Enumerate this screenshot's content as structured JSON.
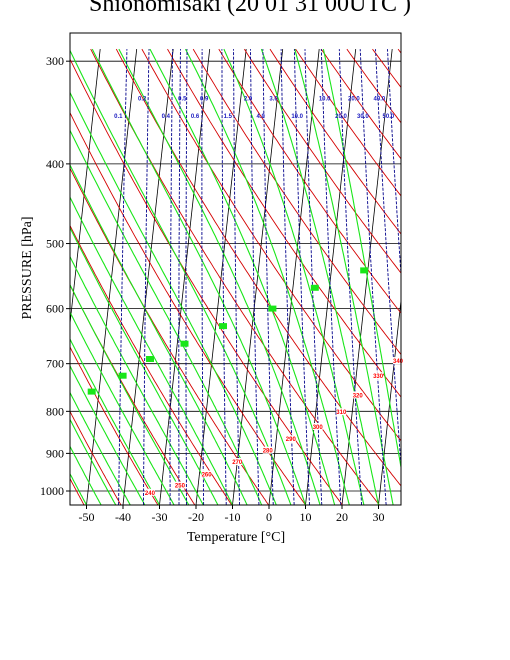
{
  "chart_data": {
    "type": "skew-t-diagram",
    "title": "Shionomisaki (20 01 31 00UTC )",
    "xlabel": "Temperature  [°C]",
    "ylabel": "PRESSURE [hPa]",
    "xlim": [
      -55,
      36
    ],
    "ylim": [
      1040,
      300
    ],
    "y_scale": "log",
    "x_ticks": [
      -50,
      -40,
      -30,
      -20,
      -10,
      0,
      10,
      20,
      30
    ],
    "x_tick_labels": [
      "-50",
      "-40",
      "-30",
      "-20",
      "-10",
      "0",
      "10",
      "20",
      "30"
    ],
    "y_ticks": [
      300,
      400,
      500,
      600,
      700,
      800,
      900,
      1000
    ],
    "y_tick_labels": [
      "300",
      "400",
      "500",
      "600",
      "700",
      "800",
      "900",
      "1000"
    ],
    "grid": true,
    "line_colors": {
      "isotherm": "#000000",
      "dry_adiabat": "#d40000",
      "moist_adiabat": "#19e619",
      "mixing_ratio": "#00008b",
      "frame": "#000000"
    },
    "mixing_ratio_labels_row1": [
      {
        "label": "0.2",
        "x": -47,
        "p": 333
      },
      {
        "label": "0.5",
        "x": -36,
        "p": 333
      },
      {
        "label": "0.9",
        "x": -30,
        "p": 333
      },
      {
        "label": "2.0",
        "x": -18,
        "p": 333
      },
      {
        "label": "3.0",
        "x": -11,
        "p": 333
      },
      {
        "label": "10.0",
        "x": 3,
        "p": 333
      },
      {
        "label": "20.0",
        "x": 11,
        "p": 333
      },
      {
        "label": "40.0",
        "x": 18,
        "p": 333
      }
    ],
    "mixing_ratio_labels_row2": [
      {
        "label": "0.1",
        "x": -53,
        "p": 350
      },
      {
        "label": "0.4",
        "x": -40,
        "p": 350
      },
      {
        "label": "0.6",
        "x": -32,
        "p": 350
      },
      {
        "label": "1.5",
        "x": -23,
        "p": 350
      },
      {
        "label": "4.0",
        "x": -14,
        "p": 350
      },
      {
        "label": "10.0",
        "x": -4,
        "p": 350
      },
      {
        "label": "20.0",
        "x": 8,
        "p": 350
      },
      {
        "label": "30.0",
        "x": 14,
        "p": 350
      },
      {
        "label": "50.0",
        "x": 21,
        "p": 350
      }
    ],
    "dry_adiabat_labels": [
      {
        "label": "240",
        "x": -33,
        "p": 1005
      },
      {
        "label": "250",
        "x": -25,
        "p": 985
      },
      {
        "label": "260",
        "x": -18,
        "p": 955
      },
      {
        "label": "270",
        "x": -10,
        "p": 922
      },
      {
        "label": "280",
        "x": -2,
        "p": 893
      },
      {
        "label": "290",
        "x": 4,
        "p": 865
      },
      {
        "label": "300",
        "x": 11,
        "p": 836
      },
      {
        "label": "310",
        "x": 17,
        "p": 802
      },
      {
        "label": "320",
        "x": 21,
        "p": 765
      },
      {
        "label": "330",
        "x": 26,
        "p": 725
      },
      {
        "label": "340",
        "x": 31,
        "p": 695
      }
    ],
    "moist_adiabat_labels": [
      {
        "label": "",
        "x": -52,
        "p": 757
      },
      {
        "label": "",
        "x": -44,
        "p": 724
      },
      {
        "label": "",
        "x": -37,
        "p": 691
      },
      {
        "label": "",
        "x": -28,
        "p": 662
      },
      {
        "label": "",
        "x": -18,
        "p": 630
      },
      {
        "label": "",
        "x": -5,
        "p": 600
      },
      {
        "label": "",
        "x": 6,
        "p": 566
      },
      {
        "label": "",
        "x": 19,
        "p": 539
      }
    ]
  }
}
